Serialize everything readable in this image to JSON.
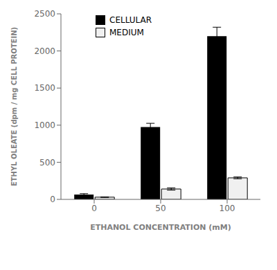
{
  "chart_data": {
    "type": "bar",
    "xlabel": "ETHANOL CONCENTRATION (mM)",
    "ylabel": "ETHYL OLEATE (dpm / mg CELL PROTEIN)",
    "categories": [
      "0",
      "50",
      "100"
    ],
    "series": [
      {
        "name": "CELLULAR",
        "color": "#000000",
        "values": [
          65,
          975,
          2200
        ],
        "errors": [
          12,
          50,
          120
        ]
      },
      {
        "name": "MEDIUM",
        "color": "#f0f0f0",
        "values": [
          30,
          140,
          290
        ],
        "errors": [
          4,
          15,
          12
        ]
      }
    ],
    "ylim": [
      0,
      2500
    ],
    "yticks": [
      0,
      500,
      1000,
      1500,
      2000,
      2500
    ],
    "legend": "upper left",
    "grid": false
  }
}
